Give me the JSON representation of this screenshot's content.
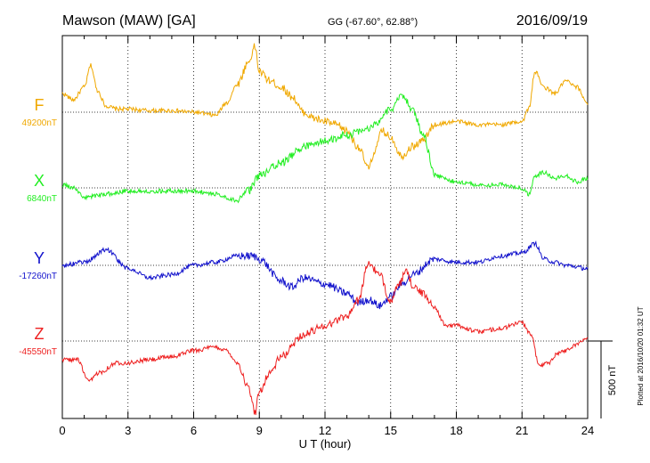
{
  "header": {
    "station": "Mawson (MAW)  [GA]",
    "coords": "GG (-67.60°,  62.88°)",
    "date": "2016/09/19"
  },
  "footer": {
    "xlabel": "U T (hour)",
    "plotted": "Plotted at 2016/10/20 01:32 UT",
    "scale_label": "500 nT"
  },
  "chart_data": {
    "type": "line",
    "xlabel": "U T (hour)",
    "xlim": [
      0,
      24
    ],
    "xticks": [
      0,
      3,
      6,
      9,
      12,
      15,
      18,
      21,
      24
    ],
    "xtick_labels": [
      "0",
      "3",
      "6",
      "9",
      "12",
      "15",
      "18",
      "21",
      "24"
    ],
    "grid": "dotted vertical every 3 hours, dotted baseline per component",
    "scale_bar_nT": 500,
    "series": [
      {
        "name": "F",
        "baseline_label": "49200nT",
        "baseline_nT": 49200,
        "color": "#f0a800",
        "x": [
          0,
          0.5,
          1,
          1.3,
          1.6,
          2,
          2.5,
          3,
          4,
          5,
          6,
          7,
          7.5,
          8,
          8.5,
          8.8,
          9,
          9.5,
          10,
          10.5,
          11,
          11.5,
          12,
          12.5,
          13,
          13.5,
          14,
          14.3,
          14.6,
          15,
          15.5,
          16,
          16.5,
          17,
          18,
          19,
          20,
          21,
          21.3,
          21.6,
          22,
          22.5,
          23,
          23.5,
          24
        ],
        "values": [
          49260,
          49240,
          49280,
          49350,
          49270,
          49220,
          49210,
          49210,
          49205,
          49205,
          49200,
          49190,
          49230,
          49290,
          49360,
          49410,
          49330,
          49300,
          49280,
          49250,
          49200,
          49180,
          49170,
          49160,
          49140,
          49090,
          49020,
          49080,
          49140,
          49120,
          49060,
          49090,
          49110,
          49160,
          49170,
          49160,
          49160,
          49170,
          49210,
          49330,
          49280,
          49260,
          49300,
          49280,
          49230
        ]
      },
      {
        "name": "X",
        "baseline_label": "6840nT",
        "baseline_nT": 6840,
        "color": "#22ee22",
        "x": [
          0,
          0.5,
          1,
          2,
          3,
          4,
          5,
          6,
          7,
          8,
          8.5,
          9,
          10,
          11,
          12,
          13,
          14,
          15,
          15.5,
          16,
          16.5,
          17,
          18,
          19,
          20,
          21,
          21.3,
          21.6,
          22,
          22.5,
          23,
          23.5,
          24
        ],
        "values": [
          6850,
          6840,
          6810,
          6820,
          6830,
          6830,
          6830,
          6830,
          6820,
          6800,
          6830,
          6880,
          6920,
          6970,
          6990,
          7010,
          7030,
          7090,
          7140,
          7090,
          7010,
          6880,
          6860,
          6850,
          6850,
          6840,
          6820,
          6880,
          6890,
          6870,
          6880,
          6860,
          6870
        ]
      },
      {
        "name": "Y",
        "baseline_label": "-17260nT",
        "baseline_nT": -17260,
        "color": "#1212cc",
        "x": [
          0,
          1,
          2,
          3,
          4,
          5,
          6,
          7,
          8,
          8.7,
          9,
          10,
          10.5,
          11,
          12,
          13,
          13.5,
          14,
          14.5,
          15,
          15.5,
          16,
          17,
          18,
          19,
          20,
          21,
          21.6,
          22,
          22.5,
          23,
          24
        ],
        "values": [
          -17260,
          -17250,
          -17210,
          -17270,
          -17300,
          -17290,
          -17260,
          -17250,
          -17230,
          -17230,
          -17240,
          -17310,
          -17330,
          -17300,
          -17320,
          -17350,
          -17380,
          -17370,
          -17390,
          -17360,
          -17320,
          -17290,
          -17240,
          -17250,
          -17250,
          -17230,
          -17220,
          -17190,
          -17240,
          -17250,
          -17260,
          -17270
        ]
      },
      {
        "name": "Z",
        "baseline_label": "-45550nT",
        "baseline_nT": -45550,
        "color": "#ee2020",
        "x": [
          0,
          0.7,
          1.2,
          1.7,
          2.5,
          3,
          4,
          5,
          6,
          7,
          7.5,
          8,
          8.5,
          8.8,
          9,
          9.5,
          10,
          11,
          12,
          13,
          13.5,
          14,
          14.5,
          15,
          15.3,
          15.7,
          16,
          16.5,
          17,
          17.5,
          18,
          19,
          20,
          21,
          21.4,
          21.8,
          22.2,
          22.6,
          23,
          23.5,
          24
        ],
        "values": [
          -45610,
          -45610,
          -45680,
          -45650,
          -45620,
          -45620,
          -45610,
          -45600,
          -45580,
          -45570,
          -45580,
          -45620,
          -45700,
          -45780,
          -45710,
          -45650,
          -45600,
          -45530,
          -45500,
          -45470,
          -45420,
          -45300,
          -45340,
          -45420,
          -45380,
          -45330,
          -45370,
          -45400,
          -45440,
          -45500,
          -45500,
          -45520,
          -45510,
          -45490,
          -45530,
          -45630,
          -45620,
          -45590,
          -45580,
          -45560,
          -45540
        ]
      }
    ]
  }
}
